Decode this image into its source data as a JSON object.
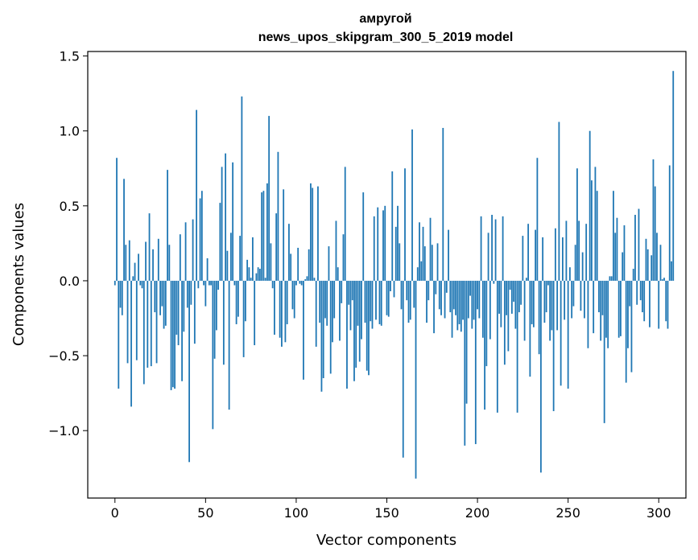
{
  "chart_data": {
    "type": "bar",
    "title": "амругой",
    "subtitle": "news_upos_skipgram_300_5_2019 model",
    "xlabel": "Vector components",
    "ylabel": "Components values",
    "xlim": [
      -15,
      315
    ],
    "ylim": [
      -1.45,
      1.53
    ],
    "xticks": [
      0,
      50,
      100,
      150,
      200,
      250,
      300
    ],
    "xtick_labels": [
      "0",
      "50",
      "100",
      "150",
      "200",
      "250",
      "300"
    ],
    "yticks": [
      -1.0,
      -0.5,
      0.0,
      0.5,
      1.0,
      1.5
    ],
    "ytick_labels": [
      "−1.0",
      "−0.5",
      "0.0",
      "0.5",
      "1.0",
      "1.5"
    ],
    "bar_color": "#1f77b4",
    "grid": false,
    "legend": "none",
    "values": [
      -0.03,
      0.82,
      -0.72,
      -0.18,
      -0.23,
      0.68,
      0.24,
      -0.55,
      0.27,
      -0.84,
      0.03,
      0.12,
      -0.53,
      0.18,
      -0.03,
      -0.05,
      -0.69,
      0.26,
      -0.58,
      0.45,
      -0.57,
      0.21,
      -0.21,
      -0.55,
      0.28,
      -0.23,
      -0.17,
      -0.32,
      -0.3,
      0.74,
      0.24,
      -0.73,
      -0.71,
      -0.72,
      -0.36,
      -0.43,
      0.31,
      -0.67,
      -0.34,
      0.39,
      -0.18,
      -1.21,
      -0.16,
      0.41,
      -0.42,
      1.14,
      -0.05,
      0.55,
      0.6,
      -0.03,
      -0.17,
      0.15,
      -0.03,
      -0.03,
      -0.99,
      -0.52,
      -0.33,
      -0.06,
      0.52,
      0.76,
      -0.56,
      0.85,
      0.2,
      -0.86,
      0.32,
      0.79,
      -0.03,
      -0.29,
      -0.24,
      0.3,
      1.23,
      -0.51,
      -0.27,
      0.14,
      0.09,
      0.02,
      0.29,
      -0.43,
      0.05,
      0.09,
      0.08,
      0.59,
      0.6,
      0.02,
      0.65,
      1.1,
      0.25,
      -0.05,
      -0.36,
      0.45,
      0.86,
      -0.38,
      -0.44,
      0.61,
      -0.41,
      -0.29,
      0.38,
      0.18,
      -0.19,
      -0.25,
      -0.03,
      0.22,
      -0.02,
      -0.03,
      -0.66,
      0.01,
      0.03,
      0.21,
      0.65,
      0.62,
      0.02,
      -0.44,
      0.63,
      -0.28,
      -0.74,
      -0.65,
      -0.25,
      -0.3,
      0.23,
      -0.62,
      -0.41,
      -0.25,
      0.4,
      0.09,
      -0.4,
      -0.15,
      0.31,
      0.76,
      -0.72,
      -0.16,
      -0.33,
      -0.13,
      -0.67,
      -0.58,
      -0.3,
      -0.54,
      -0.39,
      0.59,
      -0.28,
      -0.6,
      -0.63,
      -0.27,
      -0.32,
      0.43,
      -0.26,
      0.49,
      -0.29,
      -0.3,
      0.47,
      0.5,
      -0.23,
      -0.24,
      -0.07,
      0.73,
      -0.11,
      0.36,
      0.5,
      0.25,
      -0.19,
      -1.18,
      0.75,
      -0.13,
      -0.28,
      -0.26,
      1.01,
      -0.18,
      -1.32,
      0.09,
      0.39,
      0.13,
      0.36,
      0.23,
      -0.28,
      -0.13,
      0.42,
      0.24,
      -0.35,
      -0.09,
      0.25,
      -0.19,
      -0.23,
      1.02,
      -0.25,
      -0.08,
      0.34,
      -0.21,
      -0.38,
      -0.19,
      -0.23,
      -0.33,
      -0.29,
      -0.34,
      -0.26,
      -1.1,
      -0.82,
      -0.25,
      -0.1,
      -0.32,
      -0.26,
      -1.09,
      -0.19,
      -0.25,
      0.43,
      -0.38,
      -0.86,
      -0.57,
      0.32,
      -0.39,
      0.44,
      -0.02,
      0.41,
      -0.88,
      -0.22,
      -0.31,
      0.43,
      -0.56,
      -0.23,
      -0.47,
      -0.06,
      -0.22,
      -0.14,
      -0.32,
      -0.88,
      -0.21,
      -0.16,
      0.3,
      -0.4,
      0.02,
      0.38,
      -0.64,
      -0.29,
      -0.31,
      0.34,
      0.82,
      -0.49,
      -1.28,
      0.29,
      -0.28,
      -0.21,
      -0.03,
      -0.4,
      -0.33,
      -0.87,
      0.35,
      -0.33,
      1.06,
      -0.7,
      0.29,
      -0.26,
      0.4,
      -0.72,
      0.09,
      -0.25,
      -0.17,
      0.24,
      0.75,
      0.4,
      -0.2,
      0.19,
      -0.25,
      0.38,
      -0.45,
      1.0,
      0.67,
      -0.35,
      0.76,
      0.6,
      -0.21,
      -0.4,
      -0.23,
      -0.95,
      -0.38,
      -0.45,
      0.03,
      0.03,
      0.6,
      0.32,
      0.42,
      -0.38,
      -0.37,
      0.19,
      0.37,
      -0.68,
      -0.45,
      -0.17,
      -0.61,
      0.08,
      0.44,
      -0.16,
      0.48,
      -0.13,
      -0.21,
      -0.27,
      0.28,
      0.21,
      -0.31,
      0.17,
      0.81,
      0.63,
      0.32,
      -0.32,
      0.24,
      0.01,
      0.02,
      -0.27,
      -0.32,
      0.77,
      0.13,
      1.4
    ]
  }
}
